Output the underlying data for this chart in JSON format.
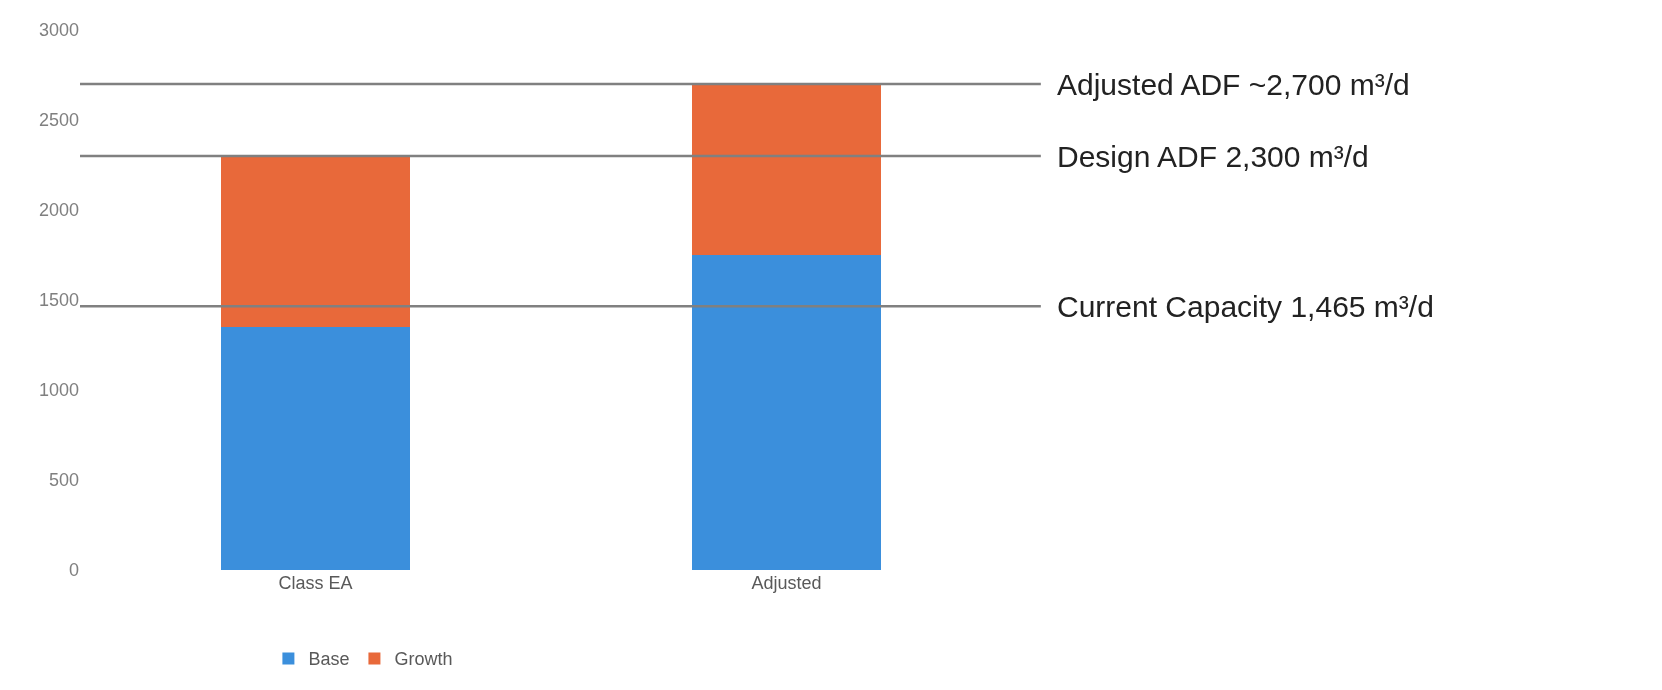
{
  "chart_data": {
    "type": "bar",
    "stacked": true,
    "categories": [
      "Class EA",
      "Adjusted"
    ],
    "series": [
      {
        "name": "Base",
        "color": "#3b8fdc",
        "values": [
          1350,
          1750
        ]
      },
      {
        "name": "Growth",
        "color": "#e8693a",
        "values": [
          950,
          950
        ]
      }
    ],
    "ylim": [
      0,
      3000
    ],
    "yticks": [
      0,
      500,
      1000,
      1500,
      2000,
      2500,
      3000
    ],
    "grid": false,
    "legend": "bottom",
    "ref_lines": [
      {
        "axis": "y",
        "value": 2700,
        "label": "Adjusted ADF ~2,700 m³/d",
        "color": "#808080"
      },
      {
        "axis": "y",
        "value": 2300,
        "label": "Design ADF 2,300 m³/d",
        "color": "#808080"
      },
      {
        "axis": "y",
        "value": 1465,
        "label": "Current Capacity 1,465 m³/d",
        "color": "#808080"
      }
    ]
  }
}
